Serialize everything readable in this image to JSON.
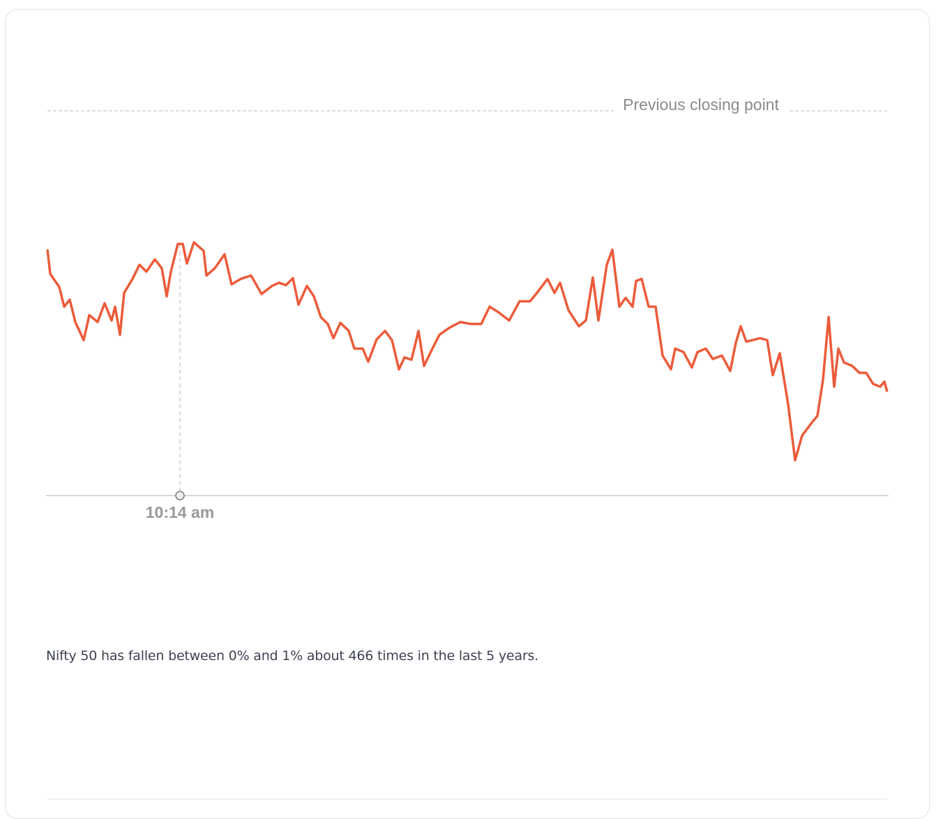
{
  "chart_data": {
    "type": "line",
    "title": "",
    "xlabel": "",
    "ylabel": "",
    "reference_line_label": "Previous closing point",
    "marker_label": "10:14 am",
    "line_color": "#ec5b3a",
    "grid": false,
    "series": [
      {
        "values": [
          64.0,
          57.6,
          54.2,
          49.1,
          50.9,
          45.1,
          40.4,
          46.9,
          45.1,
          50.0,
          45.5,
          49.1,
          41.8,
          52.7,
          56.3,
          60.0,
          58.2,
          61.4,
          59.1,
          51.8,
          58.2,
          65.4,
          65.4,
          60.3,
          65.8,
          63.6,
          57.2,
          59.1,
          62.7,
          54.9,
          56.3,
          57.2,
          52.4,
          54.5,
          55.3,
          54.7,
          56.5,
          49.6,
          54.5,
          51.8,
          46.4,
          44.6,
          40.9,
          44.9,
          42.8,
          38.2,
          38.2,
          34.8,
          40.6,
          42.8,
          40.4,
          32.8,
          35.9,
          35.3,
          42.8,
          33.7,
          38.2,
          41.8,
          43.7,
          45.1,
          44.6,
          44.6,
          49.1,
          47.6,
          45.5,
          50.5,
          50.5,
          52.7,
          56.3,
          52.7,
          55.3,
          48.2,
          44.0,
          45.5,
          56.7,
          45.5,
          60.0,
          63.9,
          49.1,
          51.4,
          49.1,
          55.8,
          56.3,
          49.1,
          49.1,
          36.4,
          32.8,
          38.2,
          37.3,
          33.3,
          37.3,
          38.2,
          35.5,
          36.4,
          32.4,
          39.7,
          44.0,
          40.0,
          40.9,
          40.4,
          31.3,
          37.0,
          23.7,
          9.2,
          15.6,
          19.2,
          20.7,
          30.1,
          46.4,
          28.3,
          38.2,
          34.6,
          33.7,
          31.9,
          31.9,
          29.0,
          28.3,
          29.6,
          27.0
        ]
      }
    ]
  },
  "caption": "Nifty 50 has fallen between 0% and 1% about 466 times in the last 5 years."
}
